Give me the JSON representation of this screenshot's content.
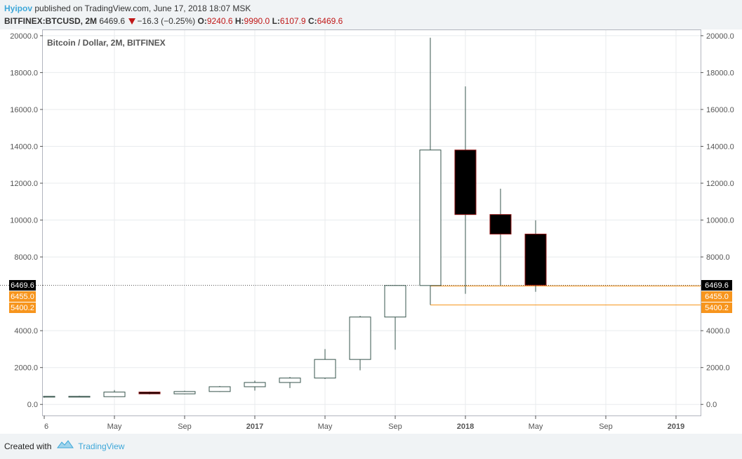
{
  "header": {
    "author": "Hyipov",
    "published_text": "published on TradingView.com, June 17, 2018 18:07 MSK",
    "symbol": "BITFINEX:BTCUSD, 2M",
    "last": "6469.6",
    "change": "−16.3 (−0.25%)",
    "o_label": "O:",
    "o_value": "9240.6",
    "h_label": "H:",
    "h_value": "9990.0",
    "l_label": "L:",
    "l_value": "6107.9",
    "c_label": "C:",
    "c_value": "6469.6"
  },
  "footer": {
    "created_with": "Created with",
    "brand": "TradingView"
  },
  "colors": {
    "up_border": "#37544c",
    "down_fill": "#000000",
    "down_border": "#8b1010",
    "grid": "#e8ebee",
    "last_line": "#555555",
    "alert": "#f7951d",
    "label_black": "#000000"
  },
  "chart_data": {
    "type": "candlestick",
    "title": "Bitcoin / Dollar, 2M, BITFINEX",
    "ylim": [
      -600,
      20300
    ],
    "y_ticks": [
      0,
      2000,
      4000,
      8000,
      10000,
      12000,
      14000,
      16000,
      18000,
      20000
    ],
    "y_tick_labels": [
      "0.0",
      "2000.0",
      "4000.0",
      "8000.0",
      "10000.0",
      "12000.0",
      "14000.0",
      "16000.0",
      "18000.0",
      "20000.0"
    ],
    "x_ticks": [
      {
        "label": "6",
        "month": 0,
        "bold": false
      },
      {
        "label": "May",
        "month": 4,
        "bold": false
      },
      {
        "label": "Sep",
        "month": 8,
        "bold": false
      },
      {
        "label": "2017",
        "month": 12,
        "bold": true
      },
      {
        "label": "May",
        "month": 16,
        "bold": false
      },
      {
        "label": "Sep",
        "month": 20,
        "bold": false
      },
      {
        "label": "2018",
        "month": 24,
        "bold": true
      },
      {
        "label": "May",
        "month": 28,
        "bold": false
      },
      {
        "label": "Sep",
        "month": 32,
        "bold": false
      },
      {
        "label": "2019",
        "month": 36,
        "bold": true
      }
    ],
    "candles": [
      {
        "month": 0,
        "open": 430,
        "high": 445,
        "low": 365,
        "close": 440
      },
      {
        "month": 2,
        "open": 415,
        "high": 470,
        "low": 395,
        "close": 440
      },
      {
        "month": 4,
        "open": 420,
        "high": 780,
        "low": 400,
        "close": 670
      },
      {
        "month": 6,
        "open": 670,
        "high": 700,
        "low": 540,
        "close": 575
      },
      {
        "month": 8,
        "open": 575,
        "high": 740,
        "low": 550,
        "close": 700
      },
      {
        "month": 10,
        "open": 700,
        "high": 1000,
        "low": 680,
        "close": 960
      },
      {
        "month": 12,
        "open": 960,
        "high": 1290,
        "low": 750,
        "close": 1190
      },
      {
        "month": 14,
        "open": 1190,
        "high": 1490,
        "low": 890,
        "close": 1430
      },
      {
        "month": 16,
        "open": 1430,
        "high": 3000,
        "low": 1380,
        "close": 2440
      },
      {
        "month": 18,
        "open": 2440,
        "high": 4800,
        "low": 1850,
        "close": 4740
      },
      {
        "month": 20,
        "open": 4740,
        "high": 6470,
        "low": 2970,
        "close": 6450
      },
      {
        "month": 22,
        "open": 6450,
        "high": 19890,
        "low": 5400,
        "close": 13800
      },
      {
        "month": 24,
        "open": 13800,
        "high": 17250,
        "low": 6000,
        "close": 10300
      },
      {
        "month": 26,
        "open": 10300,
        "high": 11700,
        "low": 6450,
        "close": 9240
      },
      {
        "month": 28,
        "open": 9240,
        "high": 9990,
        "low": 6108,
        "close": 6470
      }
    ],
    "price_lines": [
      {
        "value": 6469.6,
        "label": "6469.6",
        "style": "dotted",
        "kind": "last"
      },
      {
        "value": 6455.0,
        "label": "6455.0",
        "style": "solid",
        "kind": "alert",
        "start_month": 22
      },
      {
        "value": 5400.2,
        "label": "5400.2",
        "style": "solid",
        "kind": "alert",
        "start_month": 22
      }
    ]
  }
}
